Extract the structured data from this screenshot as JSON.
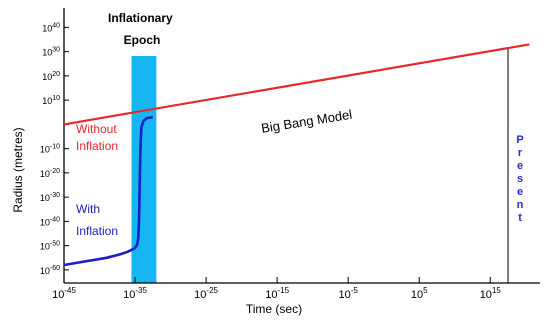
{
  "chart_data": {
    "type": "line",
    "xlabel": "Time (sec)",
    "ylabel": "Radius (metres)",
    "x_scale": "log",
    "y_scale": "log",
    "xlim_exponent": [
      -45,
      22
    ],
    "ylim_exponent": [
      -65,
      48
    ],
    "x_ticks": [
      {
        "base": "10",
        "exp": "-45",
        "value_exponent": -45
      },
      {
        "base": "10",
        "exp": "-35",
        "value_exponent": -35
      },
      {
        "base": "10",
        "exp": "-25",
        "value_exponent": -25
      },
      {
        "base": "10",
        "exp": "-15",
        "value_exponent": -15
      },
      {
        "base": "10",
        "exp": "-5",
        "value_exponent": -5
      },
      {
        "base": "10",
        "exp": "5",
        "value_exponent": 5
      },
      {
        "base": "10",
        "exp": "15",
        "value_exponent": 15
      }
    ],
    "y_ticks": [
      {
        "base": "10",
        "exp": "-60",
        "value_exponent": -60
      },
      {
        "base": "10",
        "exp": "-50",
        "value_exponent": -50
      },
      {
        "base": "10",
        "exp": "-40",
        "value_exponent": -40
      },
      {
        "base": "10",
        "exp": "-30",
        "value_exponent": -30
      },
      {
        "base": "10",
        "exp": "-20",
        "value_exponent": -20
      },
      {
        "base": "10",
        "exp": "-10",
        "value_exponent": -10
      },
      {
        "base": "10",
        "exp": "10",
        "value_exponent": 10
      },
      {
        "base": "10",
        "exp": "20",
        "value_exponent": 20
      },
      {
        "base": "10",
        "exp": "30",
        "value_exponent": 30
      },
      {
        "base": "10",
        "exp": "40",
        "value_exponent": 40
      }
    ],
    "series": [
      {
        "name": "Big Bang Model",
        "color": "#e8282b",
        "points_exponent": [
          [
            -45,
            0
          ],
          [
            20.5,
            33
          ]
        ]
      },
      {
        "name": "With Inflation",
        "color": "#1c1cc8",
        "points_exponent": [
          [
            -45,
            -58
          ],
          [
            -42,
            -56.5
          ],
          [
            -39,
            -55
          ],
          [
            -37,
            -53.5
          ],
          [
            -36,
            -52.5
          ],
          [
            -35,
            -51
          ],
          [
            -34.7,
            -49.5
          ],
          [
            -34.55,
            -47
          ],
          [
            -34.45,
            -40
          ],
          [
            -34.35,
            -25
          ],
          [
            -34.25,
            -10
          ],
          [
            -34.1,
            -1
          ],
          [
            -33.8,
            1.5
          ],
          [
            -33.3,
            2.6
          ],
          [
            -32.5,
            3
          ]
        ]
      }
    ],
    "labels": {
      "big_bang": "Big Bang Model",
      "without_line1": "Without",
      "without_line2": "Inflation",
      "with_line1": "With",
      "with_line2": "Inflation",
      "epoch_line1": "Inflationary",
      "epoch_line2": "Epoch",
      "present": "Present"
    },
    "inflationary_epoch": {
      "x_from_exponent": -35.5,
      "x_to_exponent": -32,
      "color": "#16b7f0"
    },
    "present_marker_exponent": 17.5,
    "colors": {
      "axis": "#000000",
      "big_bang": "#e8282b",
      "with_inflation": "#1c1cc8",
      "present_text": "#2a2ad6",
      "epoch_band": "#16b7f0"
    },
    "grid": false,
    "legend": "none"
  }
}
